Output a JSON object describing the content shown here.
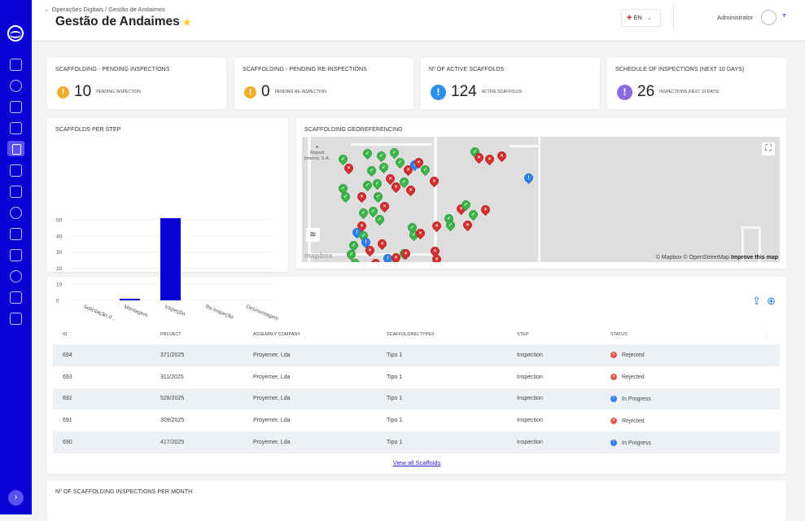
{
  "header": {
    "breadcrumb": "Operações Digitais / Gestão de Andaimes",
    "title": "Gestão de Andaimes",
    "language": "EN",
    "user": "Administrator"
  },
  "sidebar": {
    "items": [
      "dashboard-icon",
      "settings-icon",
      "scaffold-icon",
      "shield-check-icon",
      "clipboard-icon",
      "documents-icon",
      "map-icon",
      "database-icon",
      "folder-icon",
      "location-icon",
      "gear-icon",
      "group-icon",
      "help-icon"
    ],
    "active_index": 4,
    "accent": "#0a00d4"
  },
  "kpis": [
    {
      "title": "SCAFFOLDING - PENDING INSPECTIONS",
      "value": "10",
      "label": "PENDING INSPECTION",
      "color": "#f0ad2e"
    },
    {
      "title": "SCAFFOLDING - PENDING RE-INSPECTIONS",
      "value": "0",
      "label": "PENDING RE-INSPECTION",
      "color": "#f0ad2e"
    },
    {
      "title": "Nº OF ACTIVE SCAFFOLDS",
      "value": "124",
      "label": "ACTIVE SCAFFOLDS",
      "color": "#2f8fea"
    },
    {
      "title": "SCHEDULE OF INSPECTIONS (NEXT 10 DAYS)",
      "value": "26",
      "label": "INSPECTIONS (NEXT 10 DAYS)",
      "color": "#8a6be0"
    }
  ],
  "chart_data": {
    "type": "bar",
    "title": "SCAFFOLDS PER STEP",
    "categories": [
      "Solicitação d...",
      "Montagem",
      "Inspeção",
      "Re-inspeção",
      "Desmontagem"
    ],
    "values": [
      0,
      1,
      51,
      0,
      0
    ],
    "ylim": [
      0,
      50
    ],
    "yticks": [
      0,
      10,
      20,
      30,
      40,
      50
    ],
    "grid": true,
    "color": "#0a00d4"
  },
  "map": {
    "title": "SCAFFOLDING GEOREFERENCING",
    "poi": "Repsol\nlimeros, S.A.",
    "logo": "mapbox",
    "attribution": "© Mapbox © OpenStreetMap",
    "improve": "Improve this map",
    "marker_colors": {
      "approved": "#3bb54a",
      "rejected": "#d32f2f",
      "in_progress": "#2f80ed"
    }
  },
  "table": {
    "columns": [
      "ID",
      "PROJECT",
      "ASSEMBLY COMPANY",
      "SCAFFOLDING TYPES",
      "STEP",
      "STATUS"
    ],
    "rows": [
      {
        "id": "694",
        "project": "371/2025",
        "company": "Proyemer, Lda",
        "type": "Tipo 1",
        "step": "Inspection",
        "status": "Rejected"
      },
      {
        "id": "693",
        "project": "311/2025",
        "company": "Proyemer, Lda",
        "type": "Tipo 1",
        "step": "Inspection",
        "status": "Rejected"
      },
      {
        "id": "692",
        "project": "528/2025",
        "company": "Proyemer, Lda",
        "type": "Tipo 1",
        "step": "Inspection",
        "status": "In Progress"
      },
      {
        "id": "691",
        "project": "309/2025",
        "company": "Proyemer, Lda",
        "type": "Tipo 1",
        "step": "Inspection",
        "status": "Rejected"
      },
      {
        "id": "690",
        "project": "417/2025",
        "company": "Proyemer, Lda",
        "type": "Tipo 1",
        "step": "Inspection",
        "status": "In Progress"
      }
    ],
    "view_all": "View all Scaffolds"
  },
  "bottom": {
    "title": "Nº OF SCAFFOLDING INSPECTIONS PER MONTH"
  }
}
